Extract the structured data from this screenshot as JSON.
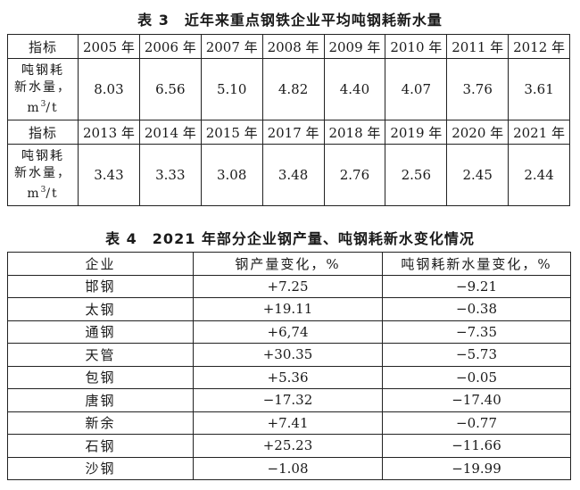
{
  "table3": {
    "caption": "表 3　近年来重点钢铁企业平均吨钢耗新水量",
    "header_label": "指标",
    "row_label_line1": "吨钢耗",
    "row_label_line2": "新水量，",
    "row_label_unit_m": "m",
    "row_label_unit_sup": "3",
    "row_label_unit_rest": "/t",
    "block1_years": [
      "2005 年",
      "2006 年",
      "2007 年",
      "2008 年",
      "2009 年",
      "2010 年",
      "2011 年",
      "2012 年"
    ],
    "block1_values": [
      "8.03",
      "6.56",
      "5.10",
      "4.82",
      "4.40",
      "4.07",
      "3.76",
      "3.61"
    ],
    "block2_years": [
      "2013 年",
      "2014 年",
      "2015 年",
      "2017 年",
      "2018 年",
      "2019 年",
      "2020 年",
      "2021 年"
    ],
    "block2_values": [
      "3.43",
      "3.33",
      "3.08",
      "3.48",
      "2.76",
      "2.56",
      "2.45",
      "2.44"
    ]
  },
  "table4": {
    "caption": "表 4　2021 年部分企业钢产量、吨钢耗新水变化情况",
    "headers": [
      "企业",
      "钢产量变化，%",
      "吨钢耗新水量变化，%"
    ],
    "rows": [
      {
        "company": "邯钢",
        "steel": "+7.25",
        "water": "−9.21"
      },
      {
        "company": "太钢",
        "steel": "+19.11",
        "water": "−0.38"
      },
      {
        "company": "通钢",
        "steel": "+6,74",
        "water": "−7.35"
      },
      {
        "company": "天管",
        "steel": "+30.35",
        "water": "−5.73"
      },
      {
        "company": "包钢",
        "steel": "+5.36",
        "water": "−0.05"
      },
      {
        "company": "唐钢",
        "steel": "−17.32",
        "water": "−17.40"
      },
      {
        "company": "新余",
        "steel": "+7.41",
        "water": "−0.77"
      },
      {
        "company": "石钢",
        "steel": "+25.23",
        "water": "−11.66"
      },
      {
        "company": "沙钢",
        "steel": "−1.08",
        "water": "−19.99"
      }
    ]
  }
}
